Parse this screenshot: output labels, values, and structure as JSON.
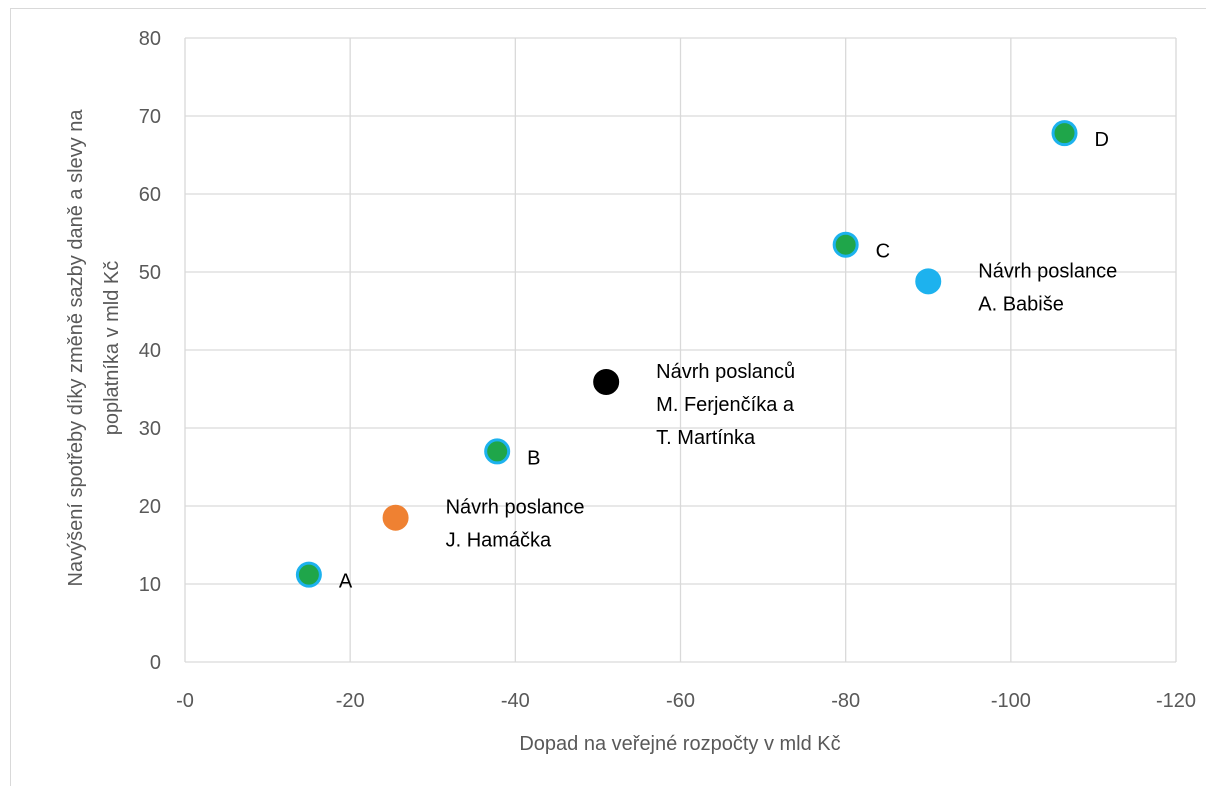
{
  "chart_data": {
    "type": "scatter",
    "xlabel": "Dopad na veřejné rozpočty v mld Kč",
    "ylabel_lines": [
      "Navýšení spotřeby díky změně sazby daně a slevy na",
      "poplatníka v mld Kč"
    ],
    "xlim": [
      0,
      -120
    ],
    "ylim": [
      0,
      80
    ],
    "x_ticks": [
      0,
      -20,
      -40,
      -60,
      -80,
      -100,
      -120
    ],
    "x_tick_labels": [
      "-0",
      "-20",
      "-40",
      "-60",
      "-80",
      "-100",
      "-120"
    ],
    "y_ticks": [
      0,
      10,
      20,
      30,
      40,
      50,
      60,
      70,
      80
    ],
    "y_tick_labels": [
      "0",
      "10",
      "20",
      "30",
      "40",
      "50",
      "60",
      "70",
      "80"
    ],
    "grid": true,
    "points": [
      {
        "x": -15,
        "y": 11.2,
        "label_lines": [
          "A"
        ],
        "fill": "#1fa64a",
        "stroke": "#1db2ee"
      },
      {
        "x": -25.5,
        "y": 18.5,
        "label_lines": [
          "Návrh poslance",
          "J. Hamáčka"
        ],
        "fill": "#ef8132",
        "stroke": "#ef8132"
      },
      {
        "x": -37.8,
        "y": 27,
        "label_lines": [
          "B"
        ],
        "fill": "#1fa64a",
        "stroke": "#1db2ee"
      },
      {
        "x": -51,
        "y": 35.9,
        "label_lines": [
          "Návrh poslanců",
          "M. Ferjenčíka a",
          "T. Martínka"
        ],
        "fill": "#000000",
        "stroke": "#000000"
      },
      {
        "x": -80,
        "y": 53.5,
        "label_lines": [
          "C"
        ],
        "fill": "#1fa64a",
        "stroke": "#1db2ee"
      },
      {
        "x": -90,
        "y": 48.8,
        "label_lines": [
          "Návrh poslance",
          "A. Babiše"
        ],
        "fill": "#1db2ee",
        "stroke": "#1db2ee"
      },
      {
        "x": -106.5,
        "y": 67.8,
        "label_lines": [
          "D"
        ],
        "fill": "#1fa64a",
        "stroke": "#1db2ee"
      }
    ]
  }
}
